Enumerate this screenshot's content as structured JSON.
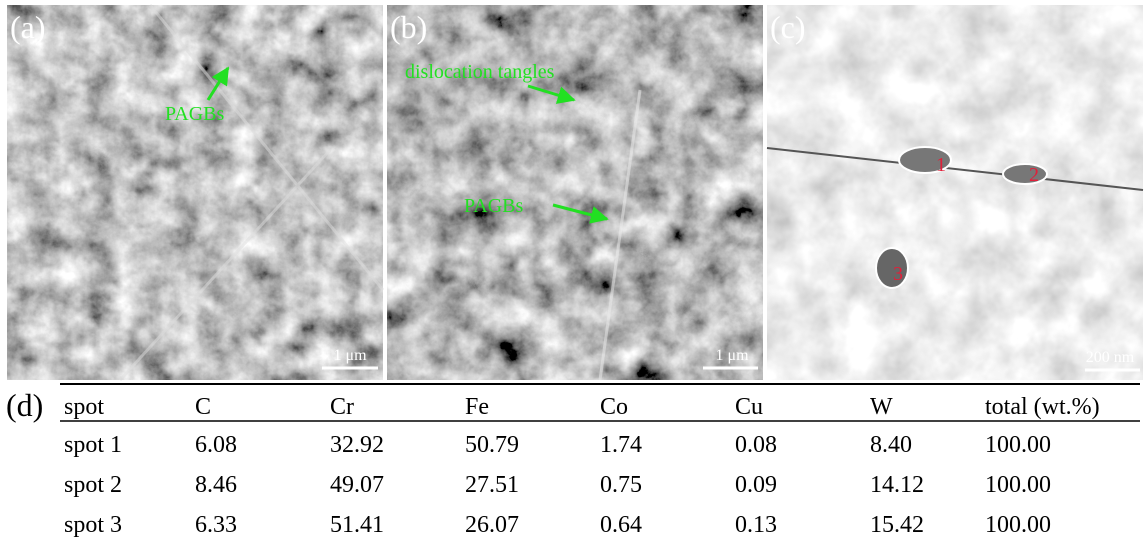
{
  "panels": [
    {
      "label": "(a)",
      "annotations": [
        "PAGBs"
      ],
      "scale_bar": "1 μm"
    },
    {
      "label": "(b)",
      "annotations": [
        "dislocation tangles",
        "PAGBs"
      ],
      "scale_bar": "1 μm"
    },
    {
      "label": "(c)",
      "markers": [
        "1",
        "2",
        "3"
      ],
      "scale_bar": "200 nm"
    }
  ],
  "table": {
    "label": "(d)",
    "header": [
      "spot",
      "C",
      "Cr",
      "Fe",
      "Co",
      "Cu",
      "W",
      "total (wt.%)"
    ],
    "rows": [
      [
        "spot 1",
        "6.08",
        "32.92",
        "50.79",
        "1.74",
        "0.08",
        "8.40",
        "100.00"
      ],
      [
        "spot 2",
        "8.46",
        "49.07",
        "27.51",
        "0.75",
        "0.09",
        "14.12",
        "100.00"
      ],
      [
        "spot 3",
        "6.33",
        "51.41",
        "26.07",
        "0.64",
        "0.13",
        "15.42",
        "100.00"
      ]
    ]
  }
}
